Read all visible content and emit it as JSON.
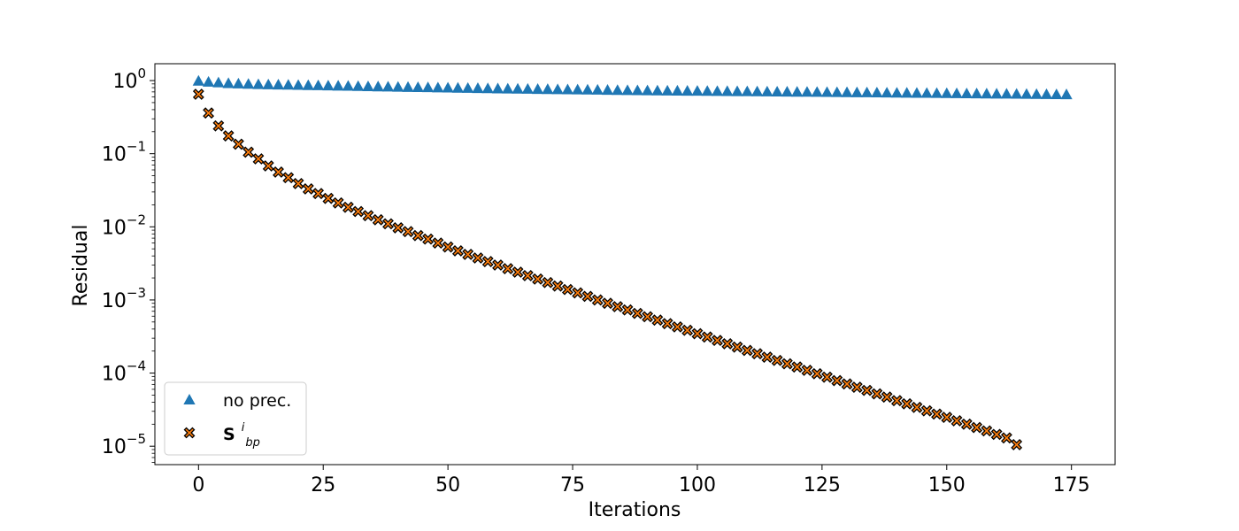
{
  "chart_data": {
    "type": "scatter",
    "title": "",
    "xlabel": "Iterations",
    "ylabel": "Residual",
    "xlim": [
      -8.75,
      183.75
    ],
    "ylim": [
      5.6e-06,
      1.7
    ],
    "yscale": "log",
    "grid": false,
    "legend_position": "lower-left",
    "xticks": [
      0,
      25,
      50,
      75,
      100,
      125,
      150,
      175
    ],
    "xtick_labels": [
      "0",
      "25",
      "50",
      "75",
      "100",
      "125",
      "150",
      "175"
    ],
    "yticks": [
      1,
      0.1,
      0.01,
      0.001,
      0.0001,
      1e-05
    ],
    "ytick_labels": [
      {
        "base": "10",
        "exp": "0"
      },
      {
        "base": "10",
        "exp": "−1"
      },
      {
        "base": "10",
        "exp": "−2"
      },
      {
        "base": "10",
        "exp": "−3"
      },
      {
        "base": "10",
        "exp": "−4"
      },
      {
        "base": "10",
        "exp": "−5"
      }
    ],
    "series": [
      {
        "name": "no prec.",
        "marker": "triangle-up",
        "color": "#1f77b4",
        "x": [
          0,
          2,
          4,
          6,
          8,
          10,
          12,
          14,
          16,
          18,
          20,
          22,
          24,
          26,
          28,
          30,
          32,
          34,
          36,
          38,
          40,
          42,
          44,
          46,
          48,
          50,
          52,
          54,
          56,
          58,
          60,
          62,
          64,
          66,
          68,
          70,
          72,
          74,
          76,
          78,
          80,
          82,
          84,
          86,
          88,
          90,
          92,
          94,
          96,
          98,
          100,
          102,
          104,
          106,
          108,
          110,
          112,
          114,
          116,
          118,
          120,
          122,
          124,
          126,
          128,
          130,
          132,
          134,
          136,
          138,
          140,
          142,
          144,
          146,
          148,
          150,
          152,
          154,
          156,
          158,
          160,
          162,
          164,
          166,
          168,
          170,
          172,
          174
        ],
        "y": [
          0.98,
          0.95,
          0.93,
          0.91,
          0.9,
          0.89,
          0.88,
          0.875,
          0.87,
          0.865,
          0.86,
          0.855,
          0.85,
          0.845,
          0.84,
          0.835,
          0.83,
          0.825,
          0.82,
          0.815,
          0.81,
          0.806,
          0.802,
          0.798,
          0.794,
          0.79,
          0.786,
          0.782,
          0.778,
          0.774,
          0.77,
          0.766,
          0.763,
          0.76,
          0.757,
          0.754,
          0.751,
          0.748,
          0.745,
          0.742,
          0.739,
          0.736,
          0.733,
          0.73,
          0.727,
          0.724,
          0.722,
          0.72,
          0.718,
          0.716,
          0.714,
          0.712,
          0.71,
          0.708,
          0.706,
          0.704,
          0.702,
          0.7,
          0.698,
          0.696,
          0.694,
          0.692,
          0.69,
          0.688,
          0.686,
          0.684,
          0.682,
          0.68,
          0.678,
          0.676,
          0.674,
          0.672,
          0.67,
          0.668,
          0.666,
          0.664,
          0.662,
          0.66,
          0.658,
          0.656,
          0.654,
          0.652,
          0.65,
          0.648,
          0.646,
          0.644,
          0.642,
          0.64
        ]
      },
      {
        "name_base": "S",
        "name_sup": "i",
        "name_sub": "bp",
        "marker": "x-filled",
        "color": "#ff7f0e",
        "edge_color": "#000000",
        "x": [
          0,
          2,
          4,
          6,
          8,
          10,
          12,
          14,
          16,
          18,
          20,
          22,
          24,
          26,
          28,
          30,
          32,
          34,
          36,
          38,
          40,
          42,
          44,
          46,
          48,
          50,
          52,
          54,
          56,
          58,
          60,
          62,
          64,
          66,
          68,
          70,
          72,
          74,
          76,
          78,
          80,
          82,
          84,
          86,
          88,
          90,
          92,
          94,
          96,
          98,
          100,
          102,
          104,
          106,
          108,
          110,
          112,
          114,
          116,
          118,
          120,
          122,
          124,
          126,
          128,
          130,
          132,
          134,
          136,
          138,
          140,
          142,
          144,
          146,
          148,
          150,
          152,
          154,
          156,
          158,
          160,
          162,
          164
        ],
        "y": [
          0.65,
          0.36,
          0.24,
          0.175,
          0.135,
          0.105,
          0.085,
          0.068,
          0.056,
          0.047,
          0.039,
          0.033,
          0.0285,
          0.0245,
          0.0212,
          0.0185,
          0.0162,
          0.0142,
          0.0125,
          0.011,
          0.0097,
          0.0086,
          0.0076,
          0.0068,
          0.006,
          0.0053,
          0.0047,
          0.0042,
          0.00375,
          0.00335,
          0.003,
          0.00268,
          0.0024,
          0.00215,
          0.00193,
          0.00173,
          0.00155,
          0.00139,
          0.00125,
          0.00112,
          0.001,
          0.0009,
          0.00081,
          0.00073,
          0.000655,
          0.00059,
          0.00053,
          0.000475,
          0.000428,
          0.000385,
          0.000346,
          0.000311,
          0.00028,
          0.000252,
          0.000227,
          0.000204,
          0.000184,
          0.000165,
          0.000149,
          0.000134,
          0.000121,
          0.000109,
          9.8e-05,
          8.8e-05,
          7.9e-05,
          7.1e-05,
          6.4e-05,
          5.8e-05,
          5.2e-05,
          4.7e-05,
          4.2e-05,
          3.8e-05,
          3.4e-05,
          3.05e-05,
          2.75e-05,
          2.48e-05,
          2.23e-05,
          2e-05,
          1.8e-05,
          1.62e-05,
          1.45e-05,
          1.3e-05,
          1.05e-05
        ]
      }
    ]
  }
}
